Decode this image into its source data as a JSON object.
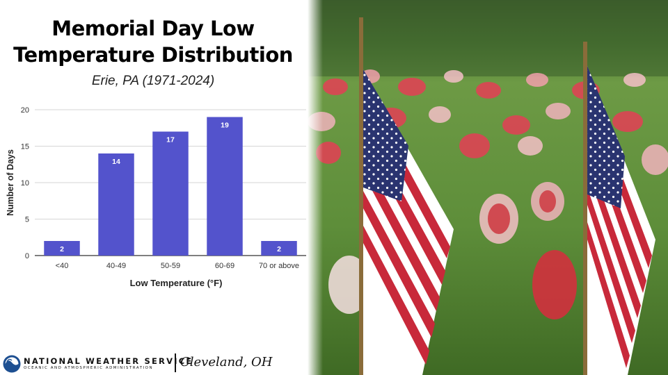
{
  "title_line1": "Memorial Day Low",
  "title_line2": "Temperature Distribution",
  "subtitle": "Erie, PA (1971-2024)",
  "chart_data": {
    "type": "bar",
    "categories": [
      "<40",
      "40-49",
      "50-59",
      "60-69",
      "70 or above"
    ],
    "values": [
      2,
      14,
      17,
      19,
      2
    ],
    "xlabel": "Low Temperature (°F)",
    "ylabel": "Number of Days",
    "ylim": [
      0,
      20
    ],
    "yticks": [
      0,
      5,
      10,
      15,
      20
    ],
    "grid": true,
    "legend": "none",
    "bar_color": "#5353cc",
    "data_labels": true
  },
  "footer": {
    "agency": "NATIONAL WEATHER SERVICE",
    "agency_sub": "OCEANIC AND ATMOSPHERIC ADMINISTRATION",
    "office": "Cleveland, OH"
  },
  "photo": {
    "icon": "american-flags-photo"
  }
}
